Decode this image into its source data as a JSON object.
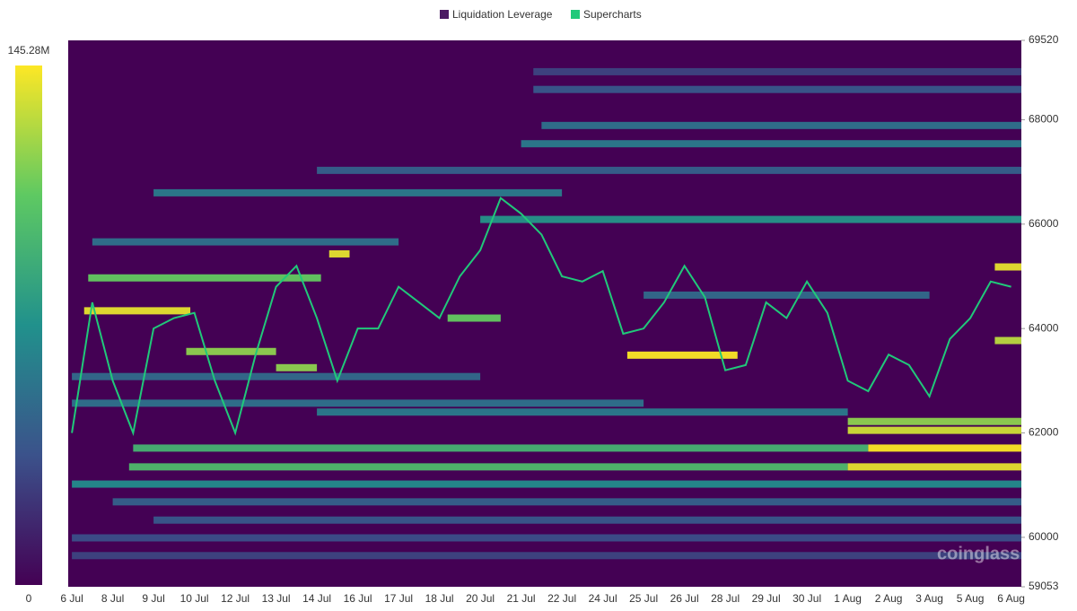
{
  "chart_data": {
    "type": "heatmap",
    "legend_position": "top",
    "colorbar": {
      "lim": [
        0,
        145.28
      ],
      "ticks": [
        {
          "value": 145.28,
          "label": "145.28M"
        },
        0
      ]
    },
    "colorscale": [
      "#440154",
      "#3b528b",
      "#21918c",
      "#5ec962",
      "#fde725"
    ],
    "categories": [
      "6 Jul",
      "8 Jul",
      "9 Jul",
      "10 Jul",
      "12 Jul",
      "13 Jul",
      "14 Jul",
      "16 Jul",
      "17 Jul",
      "18 Jul",
      "20 Jul",
      "21 Jul",
      "22 Jul",
      "24 Jul",
      "25 Jul",
      "26 Jul",
      "28 Jul",
      "29 Jul",
      "30 Jul",
      "1 Aug",
      "2 Aug",
      "3 Aug",
      "5 Aug",
      "6 Aug"
    ],
    "xlim": [
      -0.09,
      23.25
    ],
    "ylim": [
      59053,
      69520
    ],
    "yticks": [
      69520,
      68000,
      66000,
      64000,
      62000,
      60000,
      59053
    ],
    "watermark": "coinglass",
    "series": [
      {
        "name": "Liquidation Leverage",
        "color": "#4b1a63",
        "bands": [
          {
            "price": 61350,
            "start": 1.4,
            "end": 19,
            "value": 100
          },
          {
            "price": 61350,
            "start": 19,
            "end": 23.25,
            "value": 140
          },
          {
            "price": 61710,
            "start": 1.5,
            "end": 19.5,
            "value": 95
          },
          {
            "price": 61710,
            "start": 19.5,
            "end": 23.25,
            "value": 145
          },
          {
            "price": 62050,
            "start": 19,
            "end": 23.25,
            "value": 135
          },
          {
            "price": 62220,
            "start": 19,
            "end": 23.25,
            "value": 120
          },
          {
            "price": 64340,
            "start": 0.3,
            "end": 2.9,
            "value": 140
          },
          {
            "price": 64970,
            "start": 0.4,
            "end": 6.1,
            "value": 110
          },
          {
            "price": 65430,
            "start": 6.3,
            "end": 6.8,
            "value": 140
          },
          {
            "price": 63490,
            "start": 13.6,
            "end": 16.3,
            "value": 145
          },
          {
            "price": 63560,
            "start": 2.8,
            "end": 5.0,
            "value": 120
          },
          {
            "price": 64200,
            "start": 9.2,
            "end": 10.5,
            "value": 110
          },
          {
            "price": 65180,
            "start": 22.6,
            "end": 23.25,
            "value": 140
          },
          {
            "price": 63770,
            "start": 22.6,
            "end": 23.25,
            "value": 130
          },
          {
            "price": 63250,
            "start": 5,
            "end": 6,
            "value": 120
          },
          {
            "price": 66090,
            "start": 10,
            "end": 23.25,
            "value": 75
          },
          {
            "price": 67540,
            "start": 11,
            "end": 23.25,
            "value": 60
          },
          {
            "price": 67890,
            "start": 11.5,
            "end": 23.25,
            "value": 55
          },
          {
            "price": 66600,
            "start": 2,
            "end": 12,
            "value": 60
          },
          {
            "price": 65660,
            "start": 0.5,
            "end": 8,
            "value": 55
          },
          {
            "price": 63080,
            "start": 0,
            "end": 10,
            "value": 50
          },
          {
            "price": 62570,
            "start": 0,
            "end": 14,
            "value": 55
          },
          {
            "price": 61020,
            "start": 0,
            "end": 23.25,
            "value": 70
          },
          {
            "price": 60680,
            "start": 1,
            "end": 23.25,
            "value": 45
          },
          {
            "price": 60330,
            "start": 2,
            "end": 23.25,
            "value": 40
          },
          {
            "price": 59990,
            "start": 0,
            "end": 23.25,
            "value": 35
          },
          {
            "price": 59650,
            "start": 0,
            "end": 23.25,
            "value": 30
          },
          {
            "price": 68580,
            "start": 11.3,
            "end": 23.25,
            "value": 40
          },
          {
            "price": 68920,
            "start": 11.3,
            "end": 23.25,
            "value": 30
          },
          {
            "price": 67030,
            "start": 6,
            "end": 23.25,
            "value": 45
          },
          {
            "price": 62400,
            "start": 6,
            "end": 19,
            "value": 60
          },
          {
            "price": 64640,
            "start": 14,
            "end": 21,
            "value": 50
          }
        ]
      },
      {
        "name": "Supercharts",
        "color": "#20c97a",
        "x": [
          0,
          0.5,
          1,
          1.5,
          2,
          2.5,
          3,
          3.5,
          4,
          4.5,
          5,
          5.5,
          6,
          6.5,
          7,
          7.5,
          8,
          8.5,
          9,
          9.5,
          10,
          10.5,
          11,
          11.5,
          12,
          12.5,
          13,
          13.5,
          14,
          14.5,
          15,
          15.5,
          16,
          16.5,
          17,
          17.5,
          18,
          18.5,
          19,
          19.5,
          20,
          20.5,
          21,
          21.5,
          22,
          22.5,
          23
        ],
        "values": [
          62000,
          64500,
          63000,
          62000,
          64000,
          64200,
          64300,
          63000,
          62000,
          63500,
          64800,
          65200,
          64200,
          63000,
          64000,
          64000,
          64800,
          64500,
          64200,
          65000,
          65500,
          66500,
          66200,
          65800,
          65000,
          64900,
          65100,
          63900,
          64000,
          64500,
          65200,
          64600,
          63200,
          63300,
          64500,
          64200,
          64900,
          64300,
          63000,
          62800,
          63500,
          63300,
          62700,
          63800,
          64200,
          64900,
          64800
        ]
      }
    ]
  }
}
